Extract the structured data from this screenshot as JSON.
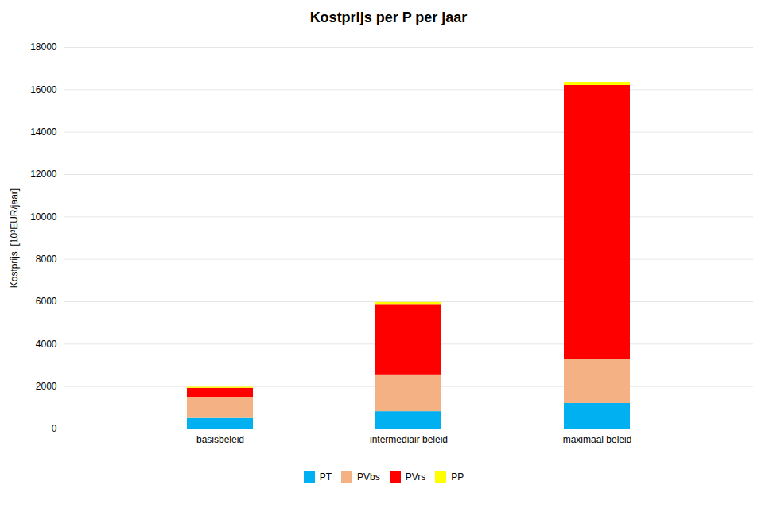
{
  "chart_data": {
    "type": "bar",
    "stacked": true,
    "title": "Kostprijs per P per jaar",
    "ylabel": "Kostprijs  [10³EUR/jaar]",
    "categories": [
      "basisbeleid",
      "intermediair beleid",
      "maximaal beleid"
    ],
    "series": [
      {
        "name": "PT",
        "color": "#00B0F0",
        "values": [
          500,
          820,
          1200
        ]
      },
      {
        "name": "PVbs",
        "color": "#F4B183",
        "values": [
          1000,
          1700,
          2100
        ]
      },
      {
        "name": "PVrs",
        "color": "#FF0000",
        "values": [
          420,
          3320,
          12900
        ]
      },
      {
        "name": "PP",
        "color": "#FFFF00",
        "values": [
          50,
          130,
          150
        ]
      }
    ],
    "ylim": [
      0,
      18000
    ],
    "yticks": [
      0,
      2000,
      4000,
      6000,
      8000,
      10000,
      12000,
      14000,
      16000,
      18000
    ],
    "grid": true,
    "legend": "bottom"
  }
}
